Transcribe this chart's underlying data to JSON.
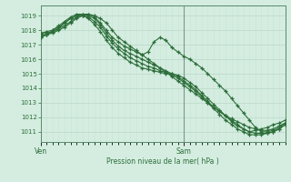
{
  "background_color": "#d4ede0",
  "grid_color_major": "#b8d8c8",
  "grid_color_minor": "#c8e4d4",
  "line_color": "#2d6e3a",
  "ylabel_ticks": [
    1011,
    1012,
    1013,
    1014,
    1015,
    1016,
    1017,
    1018,
    1019
  ],
  "ylim": [
    1010.3,
    1019.7
  ],
  "xlabel": "Pression niveau de la mer( hPa )",
  "xtick_labels": [
    "Ven",
    "Sam"
  ],
  "xtick_positions": [
    0,
    24
  ],
  "total_hours": 42,
  "line1": [
    1017.5,
    1017.7,
    1017.8,
    1018.0,
    1018.2,
    1018.5,
    1018.8,
    1019.0,
    1019.1,
    1019.0,
    1018.8,
    1018.5,
    1018.0,
    1017.5,
    1017.2,
    1016.9,
    1016.6,
    1016.3,
    1016.0,
    1015.7,
    1015.4,
    1015.1,
    1014.8,
    1014.5,
    1014.2,
    1013.9,
    1013.6,
    1013.3,
    1013.0,
    1012.7,
    1012.4,
    1012.1,
    1011.8,
    1011.5,
    1011.2,
    1011.0,
    1011.1,
    1011.2,
    1011.3,
    1011.5,
    1011.6,
    1011.8
  ],
  "line2": [
    1017.5,
    1017.7,
    1018.0,
    1018.3,
    1018.6,
    1018.9,
    1019.1,
    1019.1,
    1019.0,
    1018.8,
    1018.4,
    1017.8,
    1017.3,
    1016.9,
    1016.6,
    1016.4,
    1016.2,
    1016.0,
    1015.8,
    1015.6,
    1015.4,
    1015.2,
    1015.0,
    1014.8,
    1014.5,
    1014.2,
    1013.9,
    1013.5,
    1013.1,
    1012.7,
    1012.4,
    1012.1,
    1011.9,
    1011.7,
    1011.5,
    1011.3,
    1011.2,
    1011.1,
    1011.1,
    1011.2,
    1011.4,
    1011.6
  ],
  "line3": [
    1017.7,
    1017.8,
    1017.9,
    1018.1,
    1018.5,
    1018.8,
    1019.0,
    1019.1,
    1019.1,
    1018.9,
    1018.5,
    1018.0,
    1017.5,
    1017.2,
    1016.9,
    1016.7,
    1016.5,
    1016.3,
    1016.5,
    1017.2,
    1017.5,
    1017.3,
    1016.8,
    1016.5,
    1016.2,
    1016.0,
    1015.7,
    1015.4,
    1015.0,
    1014.6,
    1014.2,
    1013.8,
    1013.3,
    1012.8,
    1012.3,
    1011.8,
    1011.3,
    1011.0,
    1011.0,
    1011.1,
    1011.3,
    1011.6
  ],
  "line4": [
    1017.8,
    1017.9,
    1018.0,
    1018.2,
    1018.5,
    1018.8,
    1019.0,
    1019.0,
    1018.8,
    1018.4,
    1017.9,
    1017.3,
    1016.8,
    1016.4,
    1016.1,
    1015.8,
    1015.6,
    1015.4,
    1015.3,
    1015.2,
    1015.1,
    1015.0,
    1015.0,
    1014.9,
    1014.7,
    1014.4,
    1014.1,
    1013.7,
    1013.3,
    1012.9,
    1012.5,
    1012.1,
    1011.7,
    1011.4,
    1011.2,
    1011.0,
    1010.9,
    1010.9,
    1010.9,
    1011.0,
    1011.2,
    1011.5
  ],
  "line5": [
    1017.6,
    1017.7,
    1017.9,
    1018.1,
    1018.3,
    1018.6,
    1018.9,
    1019.0,
    1018.9,
    1018.6,
    1018.2,
    1017.6,
    1017.1,
    1016.7,
    1016.4,
    1016.1,
    1015.9,
    1015.7,
    1015.5,
    1015.4,
    1015.2,
    1015.1,
    1014.9,
    1014.7,
    1014.4,
    1014.1,
    1013.8,
    1013.4,
    1013.0,
    1012.6,
    1012.2,
    1011.8,
    1011.5,
    1011.2,
    1011.0,
    1010.8,
    1010.8,
    1010.8,
    1010.9,
    1011.0,
    1011.2,
    1011.5
  ]
}
